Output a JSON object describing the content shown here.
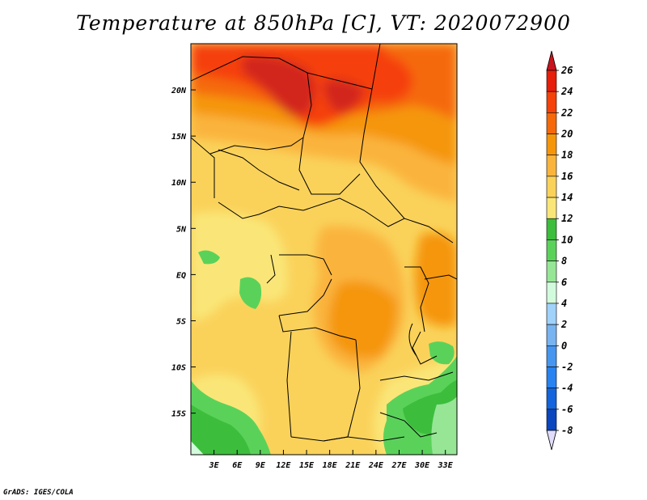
{
  "title": "Temperature at 850hPa [C], VT: 2020072900",
  "credit": "GrADS: IGES/COLA",
  "map": {
    "lon_range": [
      0,
      34.5
    ],
    "lat_range": [
      -19.5,
      25
    ],
    "lon_ticks": [
      {
        "value": 3,
        "label": "3E"
      },
      {
        "value": 6,
        "label": "6E"
      },
      {
        "value": 9,
        "label": "9E"
      },
      {
        "value": 12,
        "label": "12E"
      },
      {
        "value": 15,
        "label": "15E"
      },
      {
        "value": 18,
        "label": "18E"
      },
      {
        "value": 21,
        "label": "21E"
      },
      {
        "value": 24,
        "label": "24E"
      },
      {
        "value": 27,
        "label": "27E"
      },
      {
        "value": 30,
        "label": "30E"
      },
      {
        "value": 33,
        "label": "33E"
      }
    ],
    "lat_ticks": [
      {
        "value": 20,
        "label": "20N"
      },
      {
        "value": 15,
        "label": "15N"
      },
      {
        "value": 10,
        "label": "10N"
      },
      {
        "value": 5,
        "label": "5N"
      },
      {
        "value": 0,
        "label": "EQ"
      },
      {
        "value": -5,
        "label": "5S"
      },
      {
        "value": -10,
        "label": "10S"
      },
      {
        "value": -15,
        "label": "15S"
      }
    ]
  },
  "colorbar": {
    "levels": [
      {
        "label": "26",
        "color": "#e61e0a"
      },
      {
        "label": "24",
        "color": "#f5410a"
      },
      {
        "label": "22",
        "color": "#f5690a"
      },
      {
        "label": "20",
        "color": "#f5960a"
      },
      {
        "label": "18",
        "color": "#fab43c"
      },
      {
        "label": "16",
        "color": "#fad25a"
      },
      {
        "label": "14",
        "color": "#fae678"
      },
      {
        "label": "12",
        "color": "#3cbe3c"
      },
      {
        "label": "10",
        "color": "#5ad25a"
      },
      {
        "label": "8",
        "color": "#96e696"
      },
      {
        "label": "6",
        "color": "#d2fadc"
      },
      {
        "label": "4",
        "color": "#a0d2fa"
      },
      {
        "label": "2",
        "color": "#78b4f0"
      },
      {
        "label": "0",
        "color": "#4696f0"
      },
      {
        "label": "-2",
        "color": "#2882f0"
      },
      {
        "label": "-4",
        "color": "#1464dc"
      },
      {
        "label": "-6",
        "color": "#0a46be"
      },
      {
        "label": "-8",
        "color": "#0a1e8c"
      }
    ],
    "overflow_high_color": "#c8141e",
    "overflow_low_color": "#e1dcfa"
  }
}
